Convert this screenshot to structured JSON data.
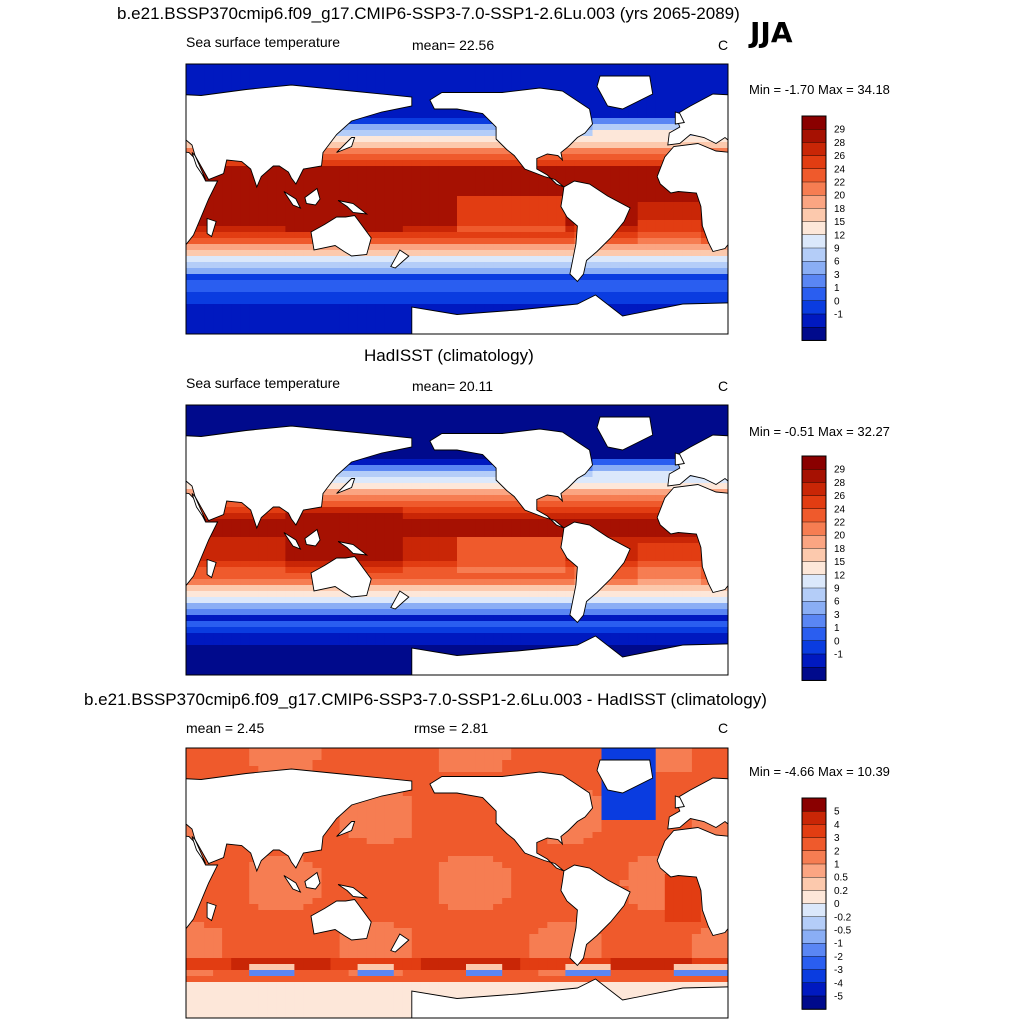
{
  "season": "JJA",
  "colors": {
    "sst_scale": [
      "#000a8c",
      "#0019c0",
      "#0a3ce0",
      "#2a5ef0",
      "#5a86f4",
      "#8aaef5",
      "#b4cdf8",
      "#dbe8fb",
      "#fde7d9",
      "#fcc9ad",
      "#fba582",
      "#f67d52",
      "#ef5a2c",
      "#e23d12",
      "#c92606",
      "#a61102",
      "#8a0000"
    ],
    "diff_scale": [
      "#000a8c",
      "#0019c0",
      "#0a3ce0",
      "#2a5ef0",
      "#5a86f4",
      "#8aaef5",
      "#b4cdf8",
      "#dbe8fb",
      "#fde7d9",
      "#fcc9ad",
      "#fba582",
      "#f67d52",
      "#ef5a2c",
      "#e23d12",
      "#c92606",
      "#8a0000"
    ],
    "land": "#ffffff",
    "coast": "#000000"
  },
  "chart_data": [
    {
      "type": "heatmap",
      "title": "b.e21.BSSP370cmip6.f09_g17.CMIP6-SSP3-7.0-SSP1-2.6Lu.003 (yrs 2065-2089)",
      "left_label": "Sea surface temperature",
      "center_label": "mean=  22.56",
      "mean": 22.56,
      "units": "C",
      "minmax_text": "Min =  -1.70 Max =  34.18",
      "min": -1.7,
      "max": 34.18,
      "colorbar_labels": [
        "29",
        "28",
        "26",
        "24",
        "22",
        "20",
        "18",
        "15",
        "12",
        "9",
        "6",
        "3",
        "1",
        "0",
        "-1"
      ],
      "field": "model_sst"
    },
    {
      "type": "heatmap",
      "title": "HadISST (climatology)",
      "left_label": "Sea surface temperature",
      "center_label": "mean=  20.11",
      "mean": 20.11,
      "units": "C",
      "minmax_text": "Min =  -0.51 Max =  32.27",
      "min": -0.51,
      "max": 32.27,
      "colorbar_labels": [
        "29",
        "28",
        "26",
        "24",
        "22",
        "20",
        "18",
        "15",
        "12",
        "9",
        "6",
        "3",
        "1",
        "0",
        "-1"
      ],
      "field": "obs_sst"
    },
    {
      "type": "heatmap",
      "title": "b.e21.BSSP370cmip6.f09_g17.CMIP6-SSP3-7.0-SSP1-2.6Lu.003 - HadISST (climatology)",
      "left_label": "mean =   2.45",
      "center_label": "rmse =   2.81",
      "mean": 2.45,
      "rmse": 2.81,
      "units": "C",
      "minmax_text": "Min =  -4.66 Max =  10.39",
      "min": -4.66,
      "max": 10.39,
      "colorbar_labels": [
        "5",
        "4",
        "3",
        "2",
        "1",
        "0.5",
        "0.2",
        "0",
        "-0.2",
        "-0.5",
        "-1",
        "-2",
        "-3",
        "-4",
        "-5"
      ],
      "field": "difference"
    }
  ]
}
